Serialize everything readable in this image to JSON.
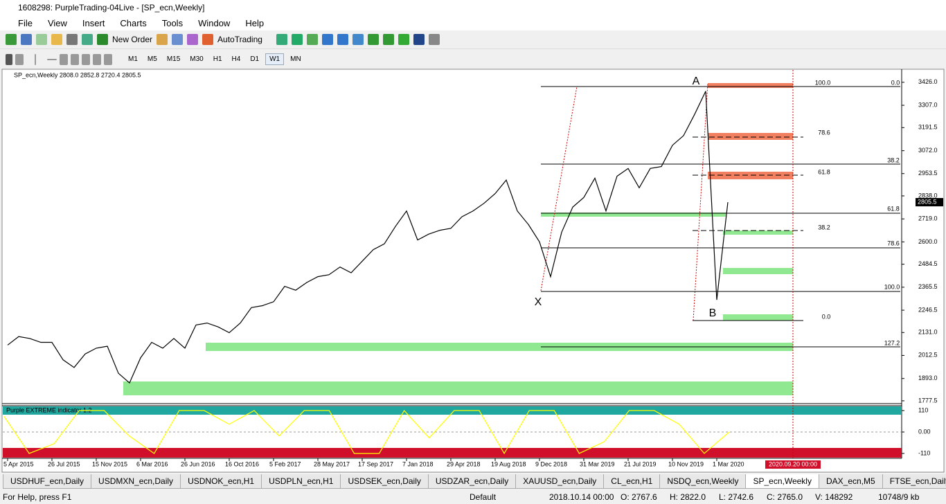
{
  "window": {
    "title": "1608298: PurpleTrading-04Live - [SP_ecn,Weekly]"
  },
  "menu": [
    "File",
    "View",
    "Insert",
    "Charts",
    "Tools",
    "Window",
    "Help"
  ],
  "toolbar": {
    "new_order": "New Order",
    "autotrading": "AutoTrading",
    "timeframes": [
      "M1",
      "M5",
      "M15",
      "M30",
      "H1",
      "H4",
      "D1",
      "W1",
      "MN"
    ]
  },
  "chart_data": [
    {
      "type": "line",
      "header": "SP_ecn,Weekly  2808.0 2852.8 2720.4 2805.5",
      "color": "#000000",
      "categories": [
        "5 Apr 2015",
        null,
        null,
        null,
        "26 Jul 2015",
        null,
        null,
        null,
        "15 Nov 2015",
        null,
        null,
        null,
        "6 Mar 2016",
        null,
        null,
        null,
        "26 Jun 2016",
        null,
        null,
        null,
        "16 Oct 2016",
        null,
        null,
        null,
        "5 Feb 2017",
        null,
        null,
        null,
        "28 May 2017",
        null,
        null,
        null,
        "17 Sep 2017",
        null,
        null,
        null,
        "7 Jan 2018",
        null,
        null,
        null,
        "29 Apr 2018",
        null,
        null,
        null,
        "19 Aug 2018",
        null,
        null,
        null,
        "9 Dec 2018",
        null,
        null,
        null,
        "31 Mar 2019",
        null,
        null,
        null,
        "21 Jul 2019",
        null,
        null,
        null,
        "10 Nov 2019",
        null,
        null,
        null,
        "1 Mar 2020",
        null
      ],
      "values": [
        2066,
        2110,
        2100,
        2080,
        2080,
        1990,
        1950,
        2020,
        2050,
        2060,
        1920,
        1870,
        2000,
        2080,
        2050,
        2100,
        2050,
        2170,
        2180,
        2160,
        2130,
        2180,
        2260,
        2270,
        2290,
        2370,
        2350,
        2390,
        2420,
        2430,
        2470,
        2440,
        2500,
        2560,
        2590,
        2680,
        2760,
        2610,
        2640,
        2660,
        2670,
        2730,
        2760,
        2800,
        2850,
        2920,
        2760,
        2690,
        2600,
        2420,
        2650,
        2780,
        2830,
        2930,
        2760,
        2940,
        2980,
        2880,
        2980,
        2990,
        3100,
        3150,
        3260,
        3380,
        2300,
        2805.5
      ],
      "ylim": [
        1763,
        3490
      ],
      "yticks": [
        {
          "value": 3426.0,
          "label": "3426.0"
        },
        {
          "value": 3307.0,
          "label": "3307.0"
        },
        3191.5,
        {
          "value": 3072.0,
          "label": "3072.0"
        },
        2953.5,
        {
          "value": 2838.0,
          "label": "2838.0"
        },
        {
          "value": 2719.0,
          "label": "2719.0"
        },
        {
          "value": 2600.0,
          "label": "2600.0"
        },
        2484.5,
        2365.5,
        2246.5,
        {
          "value": 2131.0,
          "label": "2131.0"
        },
        2012.5,
        {
          "value": 1893.0,
          "label": "1893.0"
        },
        1777.5
      ],
      "last_price": 2805.5,
      "annotations": [
        "100.0",
        "0.0",
        "78.6",
        "38.2",
        "61.8",
        "61.8",
        "38.2",
        "78.6",
        "100.0",
        "0.0",
        "127.2",
        "A",
        "X",
        "B"
      ],
      "future_date": "2020.09.20 00:00"
    },
    {
      "type": "line",
      "title": "Purple EXTREME indicator 1.2",
      "color": "#ffff00",
      "values": [
        80,
        -110,
        -60,
        110,
        110,
        -20,
        -110,
        110,
        110,
        40,
        110,
        -20,
        110,
        110,
        -110,
        -110,
        110,
        -30,
        110,
        110,
        -110,
        110,
        110,
        -110,
        -50,
        110,
        110,
        40,
        -110,
        0
      ],
      "ylim": [
        -135,
        135
      ],
      "yticks": [
        110,
        {
          "value": 0,
          "label": "0.00"
        },
        -110
      ]
    }
  ],
  "tabs": [
    "USDHUF_ecn,Daily",
    "USDMXN_ecn,Daily",
    "USDNOK_ecn,H1",
    "USDPLN_ecn,H1",
    "USDSEK_ecn,Daily",
    "USDZAR_ecn,Daily",
    "XAUUSD_ecn,Daily",
    "CL_ecn,H1",
    "NSDQ_ecn,Weekly",
    "SP_ecn,Weekly",
    "DAX_ecn,M5",
    "FTSE_ecn,Daily"
  ],
  "status": [
    "For Help, press F1",
    "Default",
    "2018.10.14 00:00",
    "O: 2767.6",
    "H: 2822.0",
    "L: 2742.6",
    "C: 2765.0",
    "V: 148292",
    "10748/9 kb"
  ]
}
